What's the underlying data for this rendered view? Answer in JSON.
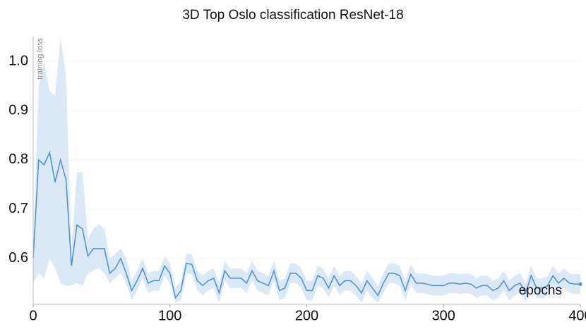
{
  "chart_data": {
    "type": "line",
    "title": "3D Top Oslo classification ResNet-18",
    "y_label": "training loss",
    "x_label": "epochs",
    "x": [
      0,
      4,
      8,
      12,
      16,
      20,
      24,
      28,
      32,
      36,
      40,
      44,
      48,
      52,
      56,
      60,
      64,
      68,
      72,
      76,
      80,
      84,
      88,
      92,
      96,
      100,
      104,
      108,
      112,
      116,
      120,
      124,
      128,
      132,
      136,
      140,
      144,
      148,
      152,
      156,
      160,
      164,
      168,
      172,
      176,
      180,
      184,
      188,
      192,
      196,
      200,
      204,
      208,
      212,
      216,
      220,
      224,
      228,
      232,
      236,
      240,
      244,
      248,
      252,
      256,
      260,
      264,
      268,
      272,
      276,
      280,
      284,
      288,
      292,
      296,
      300,
      304,
      308,
      312,
      316,
      320,
      324,
      328,
      332,
      336,
      340,
      344,
      348,
      352,
      356,
      360,
      364,
      368,
      372,
      376,
      380,
      384,
      388,
      392,
      396,
      400
    ],
    "values": [
      0.6,
      0.8,
      0.79,
      0.815,
      0.755,
      0.8,
      0.76,
      0.585,
      0.668,
      0.66,
      0.605,
      0.62,
      0.62,
      0.62,
      0.57,
      0.58,
      0.6,
      0.57,
      0.535,
      0.555,
      0.58,
      0.55,
      0.555,
      0.555,
      0.585,
      0.57,
      0.52,
      0.535,
      0.59,
      0.588,
      0.555,
      0.545,
      0.555,
      0.56,
      0.53,
      0.575,
      0.56,
      0.56,
      0.56,
      0.55,
      0.575,
      0.555,
      0.55,
      0.545,
      0.575,
      0.535,
      0.54,
      0.57,
      0.57,
      0.56,
      0.535,
      0.535,
      0.565,
      0.56,
      0.54,
      0.565,
      0.545,
      0.555,
      0.555,
      0.545,
      0.53,
      0.555,
      0.54,
      0.525,
      0.55,
      0.57,
      0.57,
      0.565,
      0.535,
      0.568,
      0.55,
      0.55,
      0.548,
      0.545,
      0.545,
      0.545,
      0.55,
      0.55,
      0.548,
      0.55,
      0.548,
      0.54,
      0.545,
      0.545,
      0.535,
      0.54,
      0.555,
      0.535,
      0.545,
      0.55,
      0.53,
      0.565,
      0.54,
      0.54,
      0.545,
      0.565,
      0.55,
      0.56,
      0.55,
      0.548,
      0.548
    ],
    "color": "#4a90d9",
    "band": {
      "color": "#dbe9f7",
      "upper": [
        0.62,
        0.95,
        1.0,
        0.94,
        0.93,
        1.05,
        0.97,
        0.62,
        0.775,
        0.775,
        0.64,
        0.66,
        0.67,
        0.66,
        0.6,
        0.61,
        0.62,
        0.6,
        0.555,
        0.575,
        0.6,
        0.57,
        0.575,
        0.575,
        0.605,
        0.59,
        0.54,
        0.555,
        0.61,
        0.608,
        0.575,
        0.565,
        0.575,
        0.58,
        0.55,
        0.595,
        0.58,
        0.58,
        0.58,
        0.57,
        0.595,
        0.575,
        0.57,
        0.565,
        0.595,
        0.555,
        0.56,
        0.59,
        0.59,
        0.58,
        0.555,
        0.555,
        0.585,
        0.58,
        0.56,
        0.585,
        0.565,
        0.575,
        0.575,
        0.565,
        0.55,
        0.575,
        0.56,
        0.545,
        0.57,
        0.59,
        0.59,
        0.585,
        0.555,
        0.588,
        0.57,
        0.57,
        0.568,
        0.565,
        0.565,
        0.565,
        0.57,
        0.57,
        0.568,
        0.57,
        0.568,
        0.56,
        0.565,
        0.565,
        0.555,
        0.56,
        0.575,
        0.555,
        0.565,
        0.57,
        0.55,
        0.585,
        0.56,
        0.56,
        0.565,
        0.585,
        0.57,
        0.58,
        0.57,
        0.568,
        0.568
      ],
      "lower": [
        0.55,
        0.57,
        0.56,
        0.6,
        0.58,
        0.55,
        0.545,
        0.545,
        0.55,
        0.545,
        0.57,
        0.575,
        0.58,
        0.57,
        0.55,
        0.56,
        0.57,
        0.55,
        0.515,
        0.535,
        0.56,
        0.53,
        0.535,
        0.535,
        0.565,
        0.55,
        0.51,
        0.515,
        0.57,
        0.568,
        0.535,
        0.525,
        0.535,
        0.54,
        0.51,
        0.555,
        0.54,
        0.54,
        0.54,
        0.53,
        0.555,
        0.535,
        0.53,
        0.525,
        0.555,
        0.515,
        0.52,
        0.55,
        0.55,
        0.54,
        0.515,
        0.515,
        0.545,
        0.54,
        0.52,
        0.545,
        0.525,
        0.535,
        0.535,
        0.525,
        0.51,
        0.535,
        0.52,
        0.51,
        0.53,
        0.55,
        0.55,
        0.545,
        0.515,
        0.548,
        0.53,
        0.53,
        0.528,
        0.525,
        0.525,
        0.525,
        0.53,
        0.53,
        0.528,
        0.53,
        0.528,
        0.52,
        0.525,
        0.525,
        0.515,
        0.52,
        0.535,
        0.515,
        0.525,
        0.53,
        0.51,
        0.545,
        0.52,
        0.52,
        0.525,
        0.545,
        0.53,
        0.54,
        0.53,
        0.528,
        0.528
      ]
    },
    "xlim": [
      0,
      400
    ],
    "xticks": [
      0,
      100,
      200,
      300,
      400
    ],
    "ylim": [
      0.507,
      1.05
    ],
    "yticks": [
      0.6,
      0.7,
      0.8,
      0.9,
      {
        "value": 1,
        "label": "1.0"
      }
    ],
    "grid": true
  }
}
